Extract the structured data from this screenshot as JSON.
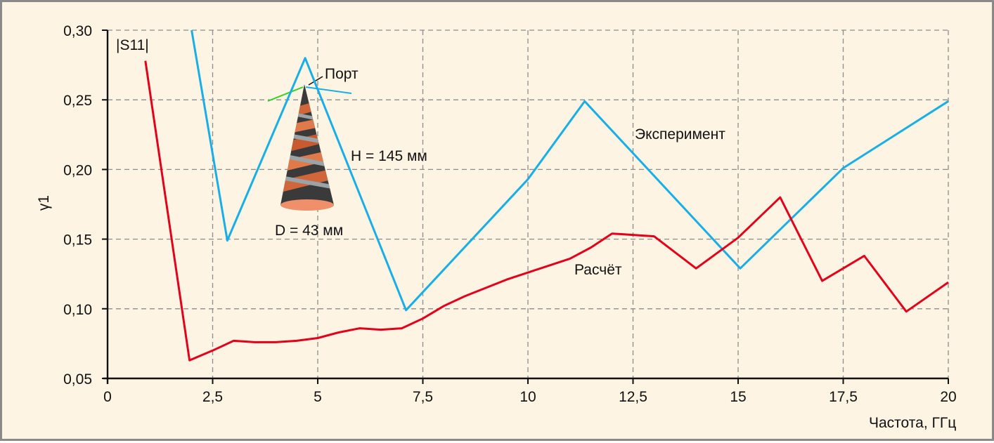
{
  "chart_data": {
    "type": "line",
    "ylabel": "γ1",
    "xlabel": "Частота, ГГц",
    "xlim": [
      0,
      20
    ],
    "ylim": [
      0.05,
      0.3
    ],
    "x_ticks": [
      0,
      2.5,
      5,
      7.5,
      10,
      12.5,
      15,
      17.5,
      20
    ],
    "x_tick_labels": [
      "0",
      "2,5",
      "5",
      "7,5",
      "10",
      "12,5",
      "15",
      "17,5",
      "20"
    ],
    "y_ticks": [
      0.05,
      0.1,
      0.15,
      0.2,
      0.25,
      0.3
    ],
    "y_tick_labels": [
      "0,05",
      "0,10",
      "0,15",
      "0,20",
      "0,25",
      "0,30"
    ],
    "grid": true,
    "series": [
      {
        "name": "Эксперимент",
        "color": "#1aaee6",
        "x": [
          2.0,
          2.85,
          4.7,
          7.1,
          10.0,
          11.35,
          15.05,
          17.5,
          20.0
        ],
        "y": [
          0.3,
          0.149,
          0.28,
          0.099,
          0.193,
          0.249,
          0.129,
          0.201,
          0.249
        ]
      },
      {
        "name": "Расчёт",
        "color": "#e3001b",
        "x": [
          0.9,
          1.95,
          2.5,
          3.0,
          3.5,
          4.0,
          4.5,
          5.0,
          5.5,
          6.0,
          6.5,
          7.0,
          7.5,
          8.0,
          8.5,
          9.0,
          9.5,
          10.0,
          10.5,
          11.0,
          11.5,
          12.0,
          12.5,
          13.0,
          14.0,
          15.0,
          16.0,
          17.0,
          18.0,
          19.0,
          20.0
        ],
        "y": [
          0.278,
          0.063,
          0.07,
          0.077,
          0.076,
          0.076,
          0.077,
          0.079,
          0.083,
          0.086,
          0.085,
          0.086,
          0.093,
          0.102,
          0.109,
          0.115,
          0.121,
          0.126,
          0.131,
          0.136,
          0.144,
          0.154,
          0.153,
          0.152,
          0.129,
          0.151,
          0.18,
          0.12,
          0.138,
          0.098,
          0.119
        ]
      }
    ],
    "annotations": {
      "s11": "|S11|",
      "port": "Порт",
      "height": "H = 145 мм",
      "diameter": "D = 43 мм",
      "experiment": "Эксперимент",
      "calc": "Расчёт"
    }
  },
  "colors": {
    "background": "#fdf4e3",
    "grid": "#8c8c8c",
    "experiment": "#1aaee6",
    "calc": "#e3001b"
  }
}
